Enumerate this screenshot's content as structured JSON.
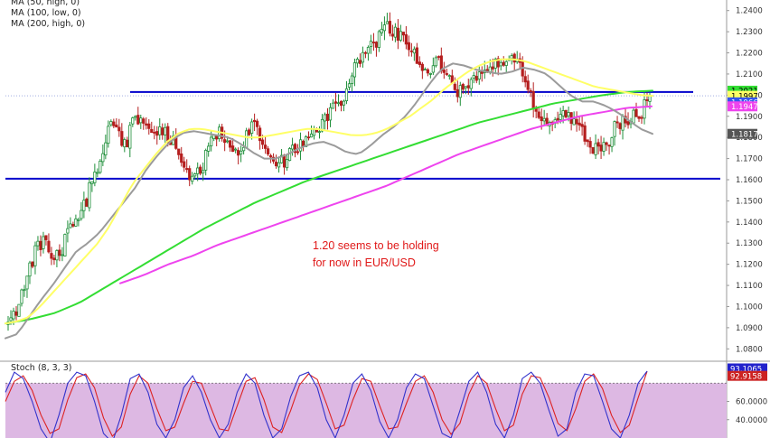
{
  "legend": {
    "ma50": "MA (50, high, 0)",
    "ma100": "MA (100, low, 0)",
    "ma200": "MA (200, high, 0)"
  },
  "annotation": {
    "line1": "1.20 seems to be holding",
    "line2": "for now in EUR/USD"
  },
  "colors": {
    "bull": "#1f8f3a",
    "bear": "#b51e1e",
    "ma50": "#ffff66",
    "ma100": "#9b9b9b",
    "ma200": "#33dd33",
    "ma_trend": "#ee44ee",
    "level": "#0000cc",
    "stoch_bg": "#ddb8e3",
    "stoch_k": "#3333cc",
    "stoch_d": "#dd2222",
    "annotation": "#e01919"
  },
  "chart_data": [
    {
      "type": "candlestick",
      "instrument": "EUR/USD",
      "ylim": [
        1.075,
        1.245
      ],
      "yticks": [
        "1.2400",
        "1.2300",
        "1.2200",
        "1.2100",
        "1.2000",
        "1.1900",
        "1.1800",
        "1.1700",
        "1.1600",
        "1.1500",
        "1.1400",
        "1.1300",
        "1.1200",
        "1.1100",
        "1.1000",
        "1.0900",
        "1.0800"
      ],
      "horizontal_levels": [
        1.2015,
        1.1605
      ],
      "price_labels": [
        {
          "text": "1.2021",
          "value": 1.2021,
          "bg": "#33dd33",
          "fg": "#000000"
        },
        {
          "text": "1.1997",
          "value": 1.1997,
          "bg": "#ffff66",
          "fg": "#000000"
        },
        {
          "text": "1.1966",
          "value": 1.1966,
          "bg": "#3355ee",
          "fg": "#ffffff"
        },
        {
          "text": "1.1947",
          "value": 1.1947,
          "bg": "#ee44ee",
          "fg": "#ffffff"
        },
        {
          "text": "1.1817",
          "value": 1.1817,
          "bg": "#555555",
          "fg": "#ffffff"
        }
      ],
      "price_path": [
        1.091,
        1.098,
        1.112,
        1.124,
        1.131,
        1.127,
        1.122,
        1.136,
        1.142,
        1.147,
        1.16,
        1.172,
        1.186,
        1.181,
        1.177,
        1.19,
        1.185,
        1.179,
        1.186,
        1.181,
        1.176,
        1.166,
        1.161,
        1.167,
        1.176,
        1.183,
        1.179,
        1.171,
        1.179,
        1.185,
        1.178,
        1.17,
        1.166,
        1.171,
        1.175,
        1.179,
        1.183,
        1.186,
        1.19,
        1.196,
        1.2,
        1.213,
        1.219,
        1.223,
        1.227,
        1.232,
        1.23,
        1.228,
        1.219,
        1.214,
        1.212,
        1.215,
        1.21,
        1.203,
        1.201,
        1.205,
        1.21,
        1.212,
        1.215,
        1.217,
        1.219,
        1.21,
        1.199,
        1.19,
        1.185,
        1.191,
        1.193,
        1.188,
        1.182,
        1.176,
        1.172,
        1.178,
        1.185,
        1.188,
        1.19,
        1.192,
        1.1997
      ],
      "ma50": [
        1.092,
        1.093,
        1.095,
        1.1,
        1.106,
        1.112,
        1.118,
        1.124,
        1.13,
        1.138,
        1.148,
        1.158,
        1.165,
        1.172,
        1.178,
        1.182,
        1.184,
        1.184,
        1.183,
        1.182,
        1.181,
        1.18,
        1.18,
        1.181,
        1.182,
        1.183,
        1.184,
        1.184,
        1.183,
        1.182,
        1.181,
        1.181,
        1.182,
        1.184,
        1.187,
        1.19,
        1.194,
        1.198,
        1.203,
        1.207,
        1.211,
        1.214,
        1.216,
        1.217,
        1.217,
        1.216,
        1.214,
        1.212,
        1.21,
        1.208,
        1.206,
        1.204,
        1.203,
        1.202,
        1.201,
        1.2,
        1.1997
      ],
      "ma100": [
        1.085,
        1.087,
        1.095,
        1.103,
        1.11,
        1.118,
        1.126,
        1.13,
        1.135,
        1.142,
        1.149,
        1.156,
        1.165,
        1.172,
        1.178,
        1.182,
        1.183,
        1.182,
        1.181,
        1.18,
        1.177,
        1.173,
        1.17,
        1.17,
        1.172,
        1.175,
        1.177,
        1.178,
        1.176,
        1.173,
        1.172,
        1.176,
        1.181,
        1.185,
        1.19,
        1.197,
        1.205,
        1.212,
        1.215,
        1.214,
        1.212,
        1.211,
        1.21,
        1.211,
        1.213,
        1.212,
        1.21,
        1.205,
        1.2,
        1.197,
        1.197,
        1.195,
        1.192,
        1.188,
        1.184,
        1.1817
      ],
      "ma200": [
        1.092,
        1.094,
        1.097,
        1.102,
        1.109,
        1.116,
        1.123,
        1.13,
        1.137,
        1.143,
        1.149,
        1.154,
        1.159,
        1.163,
        1.167,
        1.171,
        1.175,
        1.179,
        1.183,
        1.187,
        1.19,
        1.193,
        1.196,
        1.198,
        1.2,
        1.2015,
        1.2021
      ],
      "ma_trend": [
        1.111,
        1.115,
        1.12,
        1.124,
        1.129,
        1.133,
        1.137,
        1.141,
        1.145,
        1.149,
        1.153,
        1.157,
        1.162,
        1.167,
        1.172,
        1.176,
        1.18,
        1.184,
        1.187,
        1.19,
        1.192,
        1.194,
        1.1947
      ]
    },
    {
      "type": "line",
      "title": "Stoch (8, 3, 3)",
      "ylim": [
        20,
        100
      ],
      "yticks": [
        "60.0000",
        "40.0000"
      ],
      "overbought_level": 80,
      "value_labels": [
        {
          "text": "93.1065",
          "value": 93.1065,
          "bg": "#2222cc",
          "fg": "#ffffff"
        },
        {
          "text": "92.9158",
          "value": 92.9158,
          "bg": "#cc2222",
          "fg": "#ffffff"
        }
      ],
      "series": [
        {
          "values": [
            70,
            92,
            85,
            60,
            30,
            15,
            45,
            80,
            92,
            88,
            60,
            25,
            15,
            45,
            85,
            90,
            70,
            35,
            20,
            40,
            75,
            88,
            70,
            40,
            20,
            35,
            70,
            90,
            80,
            45,
            20,
            30,
            65,
            88,
            92,
            75,
            40,
            20,
            45,
            80,
            90,
            72,
            38,
            20,
            40,
            75,
            90,
            85,
            55,
            25,
            20,
            50,
            82,
            92,
            70,
            35,
            20,
            45,
            85,
            92,
            80,
            50,
            22,
            30,
            70,
            90,
            88,
            60,
            30,
            20,
            45,
            80,
            93.1065
          ]
        },
        {
          "values": [
            60,
            82,
            88,
            72,
            45,
            25,
            30,
            62,
            86,
            90,
            75,
            42,
            22,
            32,
            68,
            88,
            80,
            52,
            28,
            32,
            58,
            82,
            80,
            55,
            30,
            28,
            55,
            82,
            86,
            62,
            32,
            26,
            50,
            78,
            90,
            84,
            58,
            30,
            34,
            62,
            85,
            82,
            55,
            30,
            32,
            58,
            82,
            88,
            70,
            40,
            24,
            36,
            68,
            88,
            80,
            52,
            28,
            34,
            68,
            88,
            86,
            64,
            36,
            28,
            52,
            82,
            90,
            74,
            45,
            26,
            34,
            64,
            92.9158
          ]
        }
      ]
    }
  ]
}
